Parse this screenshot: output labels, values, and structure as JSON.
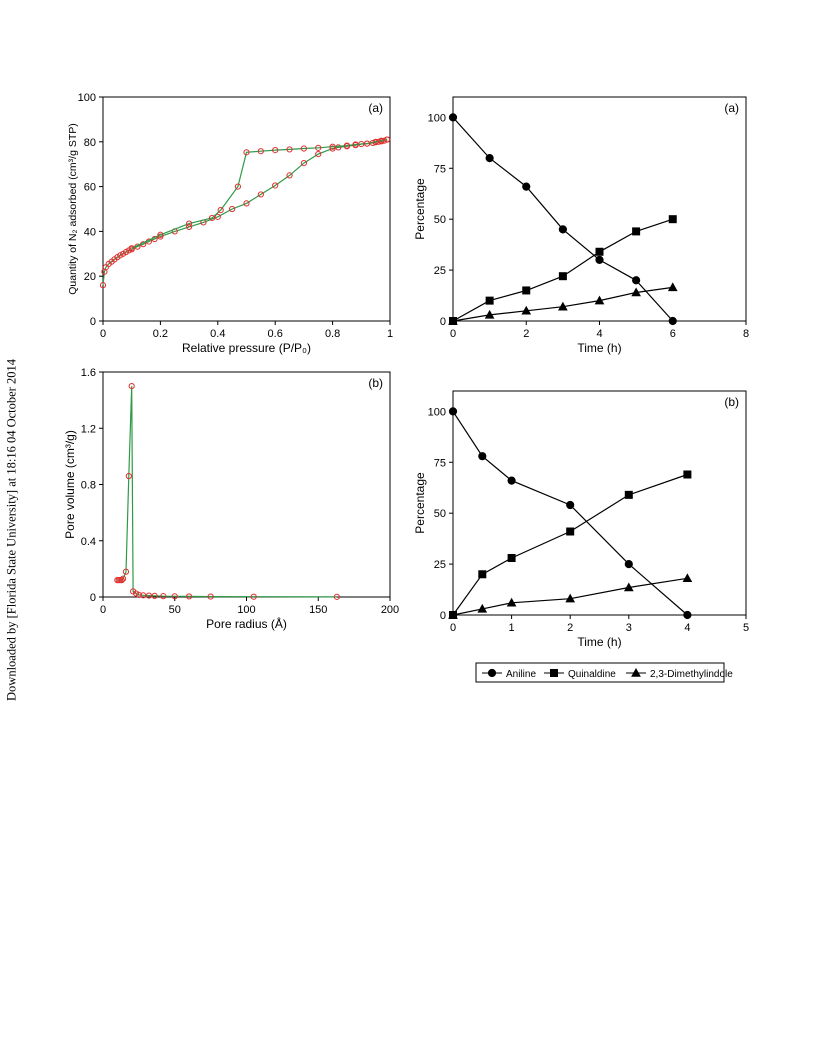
{
  "watermark": "Downloaded by [Florida State University] at 18:16 04 October 2014",
  "legend": {
    "entries": [
      {
        "name": "Aniline",
        "marker": "circle"
      },
      {
        "name": "Quinaldine",
        "marker": "square"
      },
      {
        "name": "2,3-Dimethylindole",
        "marker": "triangle"
      }
    ]
  },
  "chart_data": [
    {
      "id": "isotherm",
      "type": "line",
      "panel_label": "(a)",
      "xlabel": "Relative pressure (P/P₀)",
      "ylabel": "Quantity of N₂ adsorbed (cm³/g STP)",
      "xlim": [
        0,
        1
      ],
      "ylim": [
        0,
        100
      ],
      "xticks": [
        0,
        0.2,
        0.4,
        0.6,
        0.8,
        1
      ],
      "yticks": [
        0,
        20,
        40,
        60,
        80,
        100
      ],
      "tick_labels_x": [
        "0",
        "0.2",
        "0.4",
        "0.6",
        "0.8",
        "1"
      ],
      "tick_labels_y": [
        "0",
        "20",
        "40",
        "60",
        "80",
        "100"
      ],
      "line_color": "#2e9a47",
      "marker_color": "#e03030",
      "series": [
        {
          "points": [
            [
              0.0,
              16
            ],
            [
              0.005,
              22
            ],
            [
              0.01,
              24
            ],
            [
              0.02,
              25.5
            ],
            [
              0.03,
              26.5
            ],
            [
              0.04,
              27.5
            ],
            [
              0.05,
              28.5
            ],
            [
              0.06,
              29.3
            ],
            [
              0.07,
              30
            ],
            [
              0.08,
              30.8
            ],
            [
              0.09,
              31.5
            ],
            [
              0.1,
              32
            ],
            [
              0.12,
              33.2
            ],
            [
              0.14,
              34.3
            ],
            [
              0.16,
              35.5
            ],
            [
              0.18,
              36.6
            ],
            [
              0.2,
              37.7
            ],
            [
              0.25,
              40
            ],
            [
              0.3,
              42
            ],
            [
              0.35,
              44
            ],
            [
              0.4,
              46.5
            ],
            [
              0.45,
              50
            ],
            [
              0.5,
              52.5
            ],
            [
              0.55,
              56.5
            ],
            [
              0.6,
              60.5
            ],
            [
              0.65,
              65
            ],
            [
              0.7,
              70.5
            ],
            [
              0.75,
              74.5
            ],
            [
              0.8,
              77
            ],
            [
              0.82,
              77.5
            ],
            [
              0.85,
              78
            ],
            [
              0.88,
              78.5
            ],
            [
              0.9,
              79
            ],
            [
              0.92,
              79.2
            ],
            [
              0.94,
              79.5
            ],
            [
              0.95,
              79.8
            ],
            [
              0.96,
              80
            ],
            [
              0.97,
              80.2
            ],
            [
              0.98,
              80.5
            ],
            [
              0.99,
              81
            ]
          ]
        },
        {
          "points": [
            [
              0.99,
              81
            ],
            [
              0.97,
              80.5
            ],
            [
              0.95,
              80
            ],
            [
              0.92,
              79.2
            ],
            [
              0.88,
              78.8
            ],
            [
              0.85,
              78.3
            ],
            [
              0.8,
              77.8
            ],
            [
              0.75,
              77.3
            ],
            [
              0.7,
              77
            ],
            [
              0.65,
              76.6
            ],
            [
              0.6,
              76.3
            ],
            [
              0.55,
              75.8
            ],
            [
              0.5,
              75.3
            ],
            [
              0.47,
              60
            ],
            [
              0.41,
              49.5
            ],
            [
              0.38,
              46
            ],
            [
              0.3,
              43.5
            ],
            [
              0.2,
              38.5
            ],
            [
              0.1,
              32.5
            ]
          ]
        }
      ]
    },
    {
      "id": "pore",
      "type": "line",
      "panel_label": "(b)",
      "xlabel": "Pore radius (Å)",
      "ylabel": "Pore volume (cm³/g)",
      "xlim": [
        0,
        200
      ],
      "ylim": [
        0,
        1.6
      ],
      "xticks": [
        0,
        50,
        100,
        150,
        200
      ],
      "yticks": [
        0,
        0.4,
        0.8,
        1.2,
        1.6
      ],
      "tick_labels_x": [
        "0",
        "50",
        "100",
        "150",
        "200"
      ],
      "tick_labels_y": [
        "0",
        "0.4",
        "0.8",
        "1.2",
        "1.6"
      ],
      "line_color": "#2e9a47",
      "marker_color": "#e03030",
      "series": [
        {
          "points": [
            [
              10,
              0.12
            ],
            [
              11,
              0.12
            ],
            [
              12,
              0.12
            ],
            [
              13,
              0.12
            ],
            [
              14,
              0.13
            ],
            [
              16,
              0.18
            ],
            [
              18,
              0.86
            ],
            [
              20,
              1.5
            ],
            [
              21,
              0.04
            ],
            [
              23,
              0.025
            ],
            [
              25,
              0.015
            ],
            [
              28,
              0.012
            ],
            [
              32,
              0.01
            ],
            [
              36,
              0.008
            ],
            [
              42,
              0.006
            ],
            [
              50,
              0.005
            ],
            [
              60,
              0.004
            ],
            [
              75,
              0.003
            ],
            [
              105,
              0.002
            ],
            [
              163,
              0.001
            ]
          ]
        }
      ]
    },
    {
      "id": "kinetics-a",
      "type": "line",
      "panel_label": "(a)",
      "xlabel": "Time (h)",
      "ylabel": "Percentage",
      "xlim": [
        0,
        8
      ],
      "ylim": [
        0,
        110
      ],
      "xticks": [
        0,
        2,
        4,
        6,
        8
      ],
      "yticks": [
        0,
        25,
        50,
        75,
        100
      ],
      "tick_labels_x": [
        "0",
        "2",
        "4",
        "6",
        "8"
      ],
      "tick_labels_y": [
        "0",
        "25",
        "50",
        "75",
        "100"
      ],
      "line_color": "#000000",
      "marker_color": "#000000",
      "x": [
        0,
        1,
        2,
        3,
        4,
        5,
        6
      ],
      "series": [
        {
          "name": "Aniline",
          "marker": "circle",
          "values": [
            100,
            80,
            66,
            45,
            30,
            20,
            0
          ]
        },
        {
          "name": "Quinaldine",
          "marker": "square",
          "values": [
            0,
            10,
            15,
            22,
            34,
            44,
            50
          ]
        },
        {
          "name": "2,3-Dimethylindole",
          "marker": "triangle",
          "values": [
            0,
            3,
            5,
            7,
            10,
            14,
            16.5
          ]
        }
      ]
    },
    {
      "id": "kinetics-b",
      "type": "line",
      "panel_label": "(b)",
      "xlabel": "Time (h)",
      "ylabel": "Percentage",
      "xlim": [
        0,
        5
      ],
      "ylim": [
        0,
        110
      ],
      "xticks": [
        0,
        1,
        2,
        3,
        4,
        5
      ],
      "yticks": [
        0,
        25,
        50,
        75,
        100
      ],
      "tick_labels_x": [
        "0",
        "1",
        "2",
        "3",
        "4",
        "5"
      ],
      "tick_labels_y": [
        "0",
        "25",
        "50",
        "75",
        "100"
      ],
      "line_color": "#000000",
      "marker_color": "#000000",
      "x": [
        0,
        0.5,
        1,
        2,
        3,
        4
      ],
      "series": [
        {
          "name": "Aniline",
          "marker": "circle",
          "values": [
            100,
            78,
            66,
            54,
            25,
            0
          ]
        },
        {
          "name": "Quinaldine",
          "marker": "square",
          "values": [
            0,
            20,
            28,
            41,
            59,
            69
          ]
        },
        {
          "name": "2,3-Dimethylindole",
          "marker": "triangle",
          "values": [
            0,
            3,
            6,
            8,
            13.5,
            18
          ]
        }
      ]
    }
  ]
}
